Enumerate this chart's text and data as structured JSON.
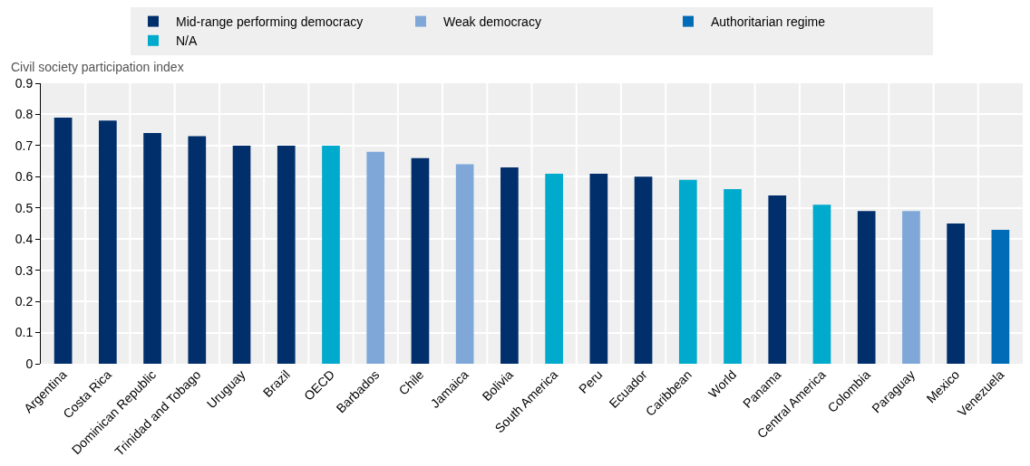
{
  "chart_data": {
    "type": "bar",
    "ylabel": "Civil society participation index",
    "categories": [
      "Argentina",
      "Costa Rica",
      "Dominican Republic",
      "Trinidad and Tobago",
      "Uruguay",
      "Brazil",
      "OECD",
      "Barbados",
      "Chile",
      "Jamaica",
      "Bolivia",
      "South America",
      "Peru",
      "Ecuador",
      "Caribbean",
      "World",
      "Panama",
      "Central America",
      "Colombia",
      "Paraguay",
      "Mexico",
      "Venezuela"
    ],
    "series": [
      {
        "name": "Mid-range performing democracy",
        "color": "#002f6c",
        "values": [
          0.79,
          0.78,
          0.74,
          0.73,
          0.7,
          0.7,
          null,
          null,
          0.66,
          null,
          0.63,
          null,
          0.61,
          0.6,
          null,
          null,
          0.54,
          null,
          0.49,
          null,
          0.45,
          null
        ]
      },
      {
        "name": "Weak democracy",
        "color": "#7fa8d9",
        "values": [
          null,
          null,
          null,
          null,
          null,
          null,
          null,
          0.68,
          null,
          0.64,
          null,
          null,
          null,
          null,
          null,
          null,
          null,
          null,
          null,
          0.49,
          null,
          null
        ]
      },
      {
        "name": "Authoritarian regime",
        "color": "#006bb6",
        "values": [
          null,
          null,
          null,
          null,
          null,
          null,
          null,
          null,
          null,
          null,
          null,
          null,
          null,
          null,
          null,
          null,
          null,
          null,
          null,
          null,
          null,
          0.43
        ]
      },
      {
        "name": "N/A",
        "color": "#00aacc",
        "values": [
          null,
          null,
          null,
          null,
          null,
          null,
          0.7,
          null,
          null,
          null,
          null,
          0.61,
          null,
          null,
          0.59,
          0.56,
          null,
          0.51,
          null,
          null,
          null,
          null
        ]
      }
    ],
    "ylim": [
      0,
      0.9
    ],
    "yticks": [
      0,
      0.1,
      0.2,
      0.3,
      0.4,
      0.5,
      0.6,
      0.7,
      0.8,
      0.9
    ],
    "grid": true,
    "legend": "top"
  }
}
